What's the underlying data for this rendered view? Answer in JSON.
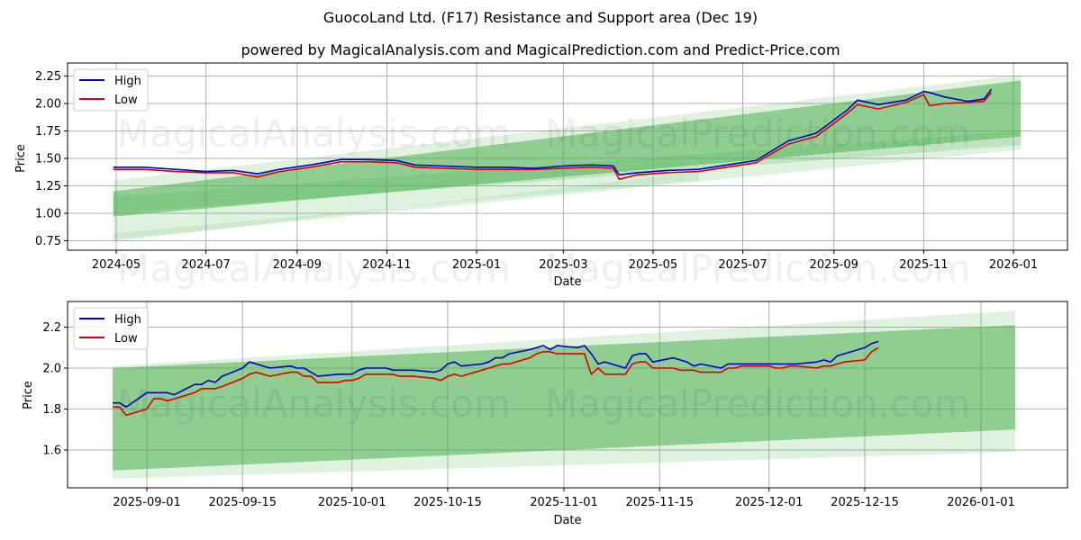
{
  "title": "GuocoLand Ltd. (F17) Resistance and Support area (Dec 19)",
  "subtitle": "powered by MagicalAnalysis.com and MagicalPrediction.com and Predict-Price.com",
  "watermarks": [
    "MagicalAnalysis.com",
    "MagicalPrediction.com"
  ],
  "colors": {
    "high": "#0000cc",
    "low": "#dd0000",
    "band": "#4caf50",
    "grid": "#b0b0b0"
  },
  "chart_data": [
    {
      "type": "line",
      "title": "Full history",
      "xlabel": "Date",
      "ylabel": "Price",
      "ylim": [
        0.67,
        2.34
      ],
      "grid": true,
      "legend_position": "upper left",
      "legend": [
        "High",
        "Low"
      ],
      "x_ticks": [
        "2024-05",
        "2024-07",
        "2024-09",
        "2024-11",
        "2025-01",
        "2025-03",
        "2025-05",
        "2025-07",
        "2025-09",
        "2025-11",
        "2026-01"
      ],
      "y_ticks": [
        "0.75",
        "1.00",
        "1.25",
        "1.50",
        "1.75",
        "2.00",
        "2.25"
      ],
      "x": [
        "2024-04-29",
        "2024-05-20",
        "2024-06-10",
        "2024-07-01",
        "2024-07-20",
        "2024-08-05",
        "2024-08-20",
        "2024-09-10",
        "2024-10-01",
        "2024-10-20",
        "2024-11-08",
        "2024-11-20",
        "2024-12-10",
        "2025-01-01",
        "2025-01-20",
        "2025-02-10",
        "2025-03-01",
        "2025-03-20",
        "2025-04-04",
        "2025-04-08",
        "2025-04-20",
        "2025-05-10",
        "2025-06-01",
        "2025-06-20",
        "2025-07-10",
        "2025-08-01",
        "2025-08-20",
        "2025-09-10",
        "2025-09-17",
        "2025-10-01",
        "2025-10-20",
        "2025-11-01",
        "2025-11-05",
        "2025-11-15",
        "2025-12-01",
        "2025-12-12",
        "2025-12-17"
      ],
      "series": [
        {
          "name": "High",
          "values": [
            1.42,
            1.42,
            1.4,
            1.38,
            1.39,
            1.36,
            1.4,
            1.44,
            1.49,
            1.49,
            1.48,
            1.44,
            1.43,
            1.42,
            1.42,
            1.41,
            1.43,
            1.44,
            1.43,
            1.35,
            1.37,
            1.39,
            1.4,
            1.44,
            1.48,
            1.66,
            1.73,
            1.94,
            2.03,
            1.99,
            2.03,
            2.11,
            2.1,
            2.06,
            2.02,
            2.04,
            2.13
          ]
        },
        {
          "name": "Low",
          "values": [
            1.4,
            1.4,
            1.38,
            1.37,
            1.37,
            1.33,
            1.38,
            1.42,
            1.47,
            1.47,
            1.46,
            1.42,
            1.41,
            1.4,
            1.4,
            1.4,
            1.41,
            1.42,
            1.41,
            1.31,
            1.35,
            1.37,
            1.38,
            1.42,
            1.46,
            1.63,
            1.7,
            1.91,
            1.99,
            1.95,
            2.01,
            2.08,
            1.98,
            2.0,
            2.01,
            2.02,
            2.1
          ]
        }
      ],
      "bands": [
        {
          "name": "Resistance/support band (outer, faint)",
          "x": [
            "2024-04-29",
            "2026-01-06"
          ],
          "upper": [
            1.3,
            2.26
          ],
          "lower": [
            0.76,
            1.58
          ]
        },
        {
          "name": "Resistance/support band (inner)",
          "x": [
            "2024-04-29",
            "2026-01-06"
          ],
          "upper": [
            1.2,
            2.21
          ],
          "lower": [
            0.97,
            1.7
          ]
        }
      ]
    },
    {
      "type": "line",
      "title": "Recent zoom",
      "xlabel": "Date",
      "ylabel": "Price",
      "ylim": [
        1.42,
        2.32
      ],
      "grid": true,
      "legend_position": "upper left",
      "legend": [
        "High",
        "Low"
      ],
      "x_ticks": [
        "2025-09-01",
        "2025-09-15",
        "2025-10-01",
        "2025-10-15",
        "2025-11-01",
        "2025-11-15",
        "2025-12-01",
        "2025-12-15",
        "2026-01-01"
      ],
      "y_ticks": [
        "1.6",
        "1.8",
        "2.0",
        "2.2"
      ],
      "x": [
        "2025-08-27",
        "2025-08-28",
        "2025-08-29",
        "2025-09-01",
        "2025-09-02",
        "2025-09-03",
        "2025-09-04",
        "2025-09-05",
        "2025-09-08",
        "2025-09-09",
        "2025-09-10",
        "2025-09-11",
        "2025-09-12",
        "2025-09-15",
        "2025-09-16",
        "2025-09-17",
        "2025-09-18",
        "2025-09-19",
        "2025-09-22",
        "2025-09-23",
        "2025-09-24",
        "2025-09-25",
        "2025-09-26",
        "2025-09-29",
        "2025-09-30",
        "2025-10-01",
        "2025-10-02",
        "2025-10-03",
        "2025-10-06",
        "2025-10-07",
        "2025-10-08",
        "2025-10-09",
        "2025-10-10",
        "2025-10-13",
        "2025-10-14",
        "2025-10-15",
        "2025-10-16",
        "2025-10-17",
        "2025-10-20",
        "2025-10-21",
        "2025-10-22",
        "2025-10-23",
        "2025-10-24",
        "2025-10-27",
        "2025-10-28",
        "2025-10-29",
        "2025-10-30",
        "2025-10-31",
        "2025-11-03",
        "2025-11-04",
        "2025-11-05",
        "2025-11-06",
        "2025-11-07",
        "2025-11-10",
        "2025-11-11",
        "2025-11-12",
        "2025-11-13",
        "2025-11-14",
        "2025-11-17",
        "2025-11-18",
        "2025-11-19",
        "2025-11-20",
        "2025-11-21",
        "2025-11-24",
        "2025-11-25",
        "2025-11-26",
        "2025-11-27",
        "2025-11-28",
        "2025-12-01",
        "2025-12-02",
        "2025-12-03",
        "2025-12-04",
        "2025-12-05",
        "2025-12-08",
        "2025-12-09",
        "2025-12-10",
        "2025-12-11",
        "2025-12-12",
        "2025-12-15",
        "2025-12-16",
        "2025-12-17"
      ],
      "series": [
        {
          "name": "High",
          "values": [
            1.83,
            1.83,
            1.81,
            1.88,
            1.88,
            1.88,
            1.88,
            1.87,
            1.92,
            1.92,
            1.94,
            1.93,
            1.96,
            2.0,
            2.03,
            2.02,
            2.01,
            2.0,
            2.01,
            2.0,
            2.0,
            1.98,
            1.96,
            1.97,
            1.97,
            1.97,
            1.99,
            2.0,
            2.0,
            1.99,
            1.99,
            1.99,
            1.99,
            1.98,
            1.99,
            2.02,
            2.03,
            2.01,
            2.02,
            2.03,
            2.05,
            2.05,
            2.07,
            2.09,
            2.1,
            2.11,
            2.09,
            2.11,
            2.1,
            2.11,
            2.07,
            2.02,
            2.03,
            2.0,
            2.06,
            2.07,
            2.07,
            2.03,
            2.05,
            2.04,
            2.03,
            2.01,
            2.02,
            2.0,
            2.02,
            2.02,
            2.02,
            2.02,
            2.02,
            2.02,
            2.02,
            2.02,
            2.02,
            2.03,
            2.04,
            2.03,
            2.06,
            2.07,
            2.1,
            2.12,
            2.13
          ]
        },
        {
          "name": "Low",
          "values": [
            1.81,
            1.81,
            1.77,
            1.8,
            1.85,
            1.85,
            1.84,
            1.85,
            1.88,
            1.9,
            1.9,
            1.9,
            1.91,
            1.95,
            1.97,
            1.98,
            1.97,
            1.96,
            1.98,
            1.98,
            1.96,
            1.96,
            1.93,
            1.93,
            1.94,
            1.94,
            1.95,
            1.97,
            1.97,
            1.97,
            1.96,
            1.96,
            1.96,
            1.95,
            1.94,
            1.96,
            1.97,
            1.96,
            1.99,
            2.0,
            2.01,
            2.02,
            2.02,
            2.05,
            2.07,
            2.08,
            2.08,
            2.07,
            2.07,
            2.07,
            1.97,
            2.0,
            1.97,
            1.97,
            2.02,
            2.03,
            2.03,
            2.0,
            2.0,
            1.99,
            1.99,
            1.99,
            1.98,
            1.98,
            2.0,
            2.0,
            2.01,
            2.01,
            2.01,
            2.0,
            2.0,
            2.01,
            2.01,
            2.0,
            2.01,
            2.01,
            2.02,
            2.03,
            2.04,
            2.08,
            2.1
          ]
        }
      ],
      "bands": [
        {
          "name": "Resistance/support band (outer, faint)",
          "x": [
            "2025-08-27",
            "2026-01-06"
          ],
          "upper": [
            2.01,
            2.28
          ],
          "lower": [
            1.46,
            1.59
          ]
        },
        {
          "name": "Resistance/support band (inner)",
          "x": [
            "2025-08-27",
            "2026-01-06"
          ],
          "upper": [
            2.0,
            2.21
          ],
          "lower": [
            1.5,
            1.7
          ]
        }
      ]
    }
  ],
  "legend": {
    "high_label": "High",
    "low_label": "Low"
  },
  "axes": {
    "top": {
      "xlabel": "Date",
      "ylabel": "Price"
    },
    "bottom": {
      "xlabel": "Date",
      "ylabel": "Price"
    }
  }
}
